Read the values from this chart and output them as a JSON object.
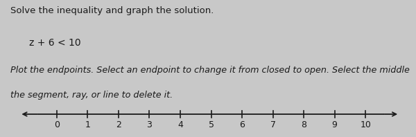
{
  "title_line1": "Solve the inequality and graph the solution.",
  "equation": "z + 6 < 10",
  "instruction_line1": "Plot the endpoints. Select an endpoint to change it from closed to open. Select the middle",
  "instruction_line2": "the segment, ray, or line to delete it.",
  "tick_labels": [
    "0",
    "1",
    "2",
    "3",
    "4",
    "5",
    "6",
    "7",
    "8",
    "9",
    "10"
  ],
  "background_color": "#c8c8c8",
  "text_color": "#1a1a1a",
  "line_color": "#1a1a1a",
  "title_fontsize": 9.5,
  "eq_fontsize": 10.0,
  "instr_fontsize": 9.2,
  "tick_fontsize": 9.0,
  "title_weight": "normal",
  "eq_weight": "normal"
}
